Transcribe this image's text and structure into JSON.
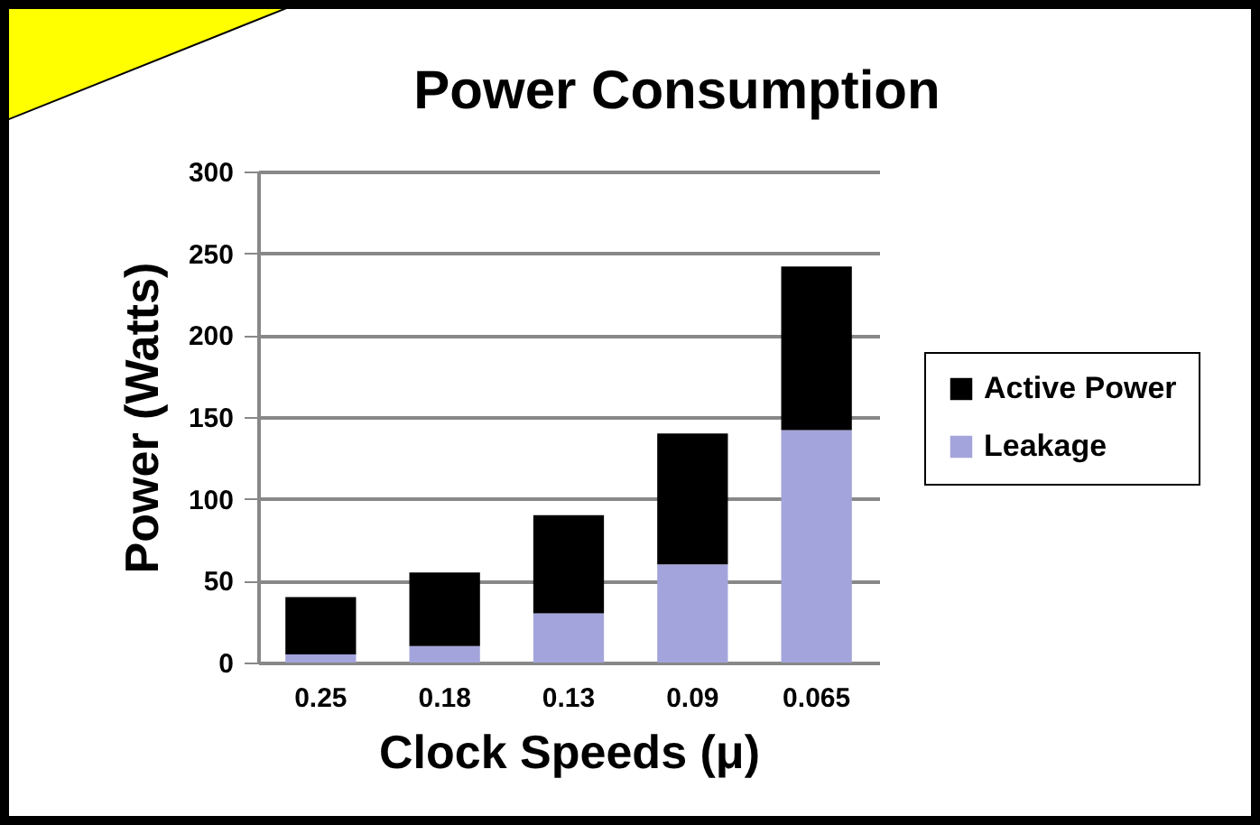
{
  "chart_data": {
    "type": "bar",
    "title": "Power Consumption",
    "xlabel": "Clock Speeds (μ)",
    "ylabel": "Power (Watts)",
    "categories": [
      "0.25",
      "0.18",
      "0.13",
      "0.09",
      "0.065"
    ],
    "series": [
      {
        "name": "Leakage",
        "color": "#a4a4dc",
        "values": [
          5,
          10,
          30,
          60,
          142
        ]
      },
      {
        "name": "Active Power",
        "color": "#000000",
        "values": [
          35,
          45,
          60,
          80,
          100
        ]
      }
    ],
    "stacked": true,
    "ylim": [
      0,
      300
    ],
    "yticks": [
      0,
      50,
      100,
      150,
      200,
      250,
      300
    ],
    "grid": "y",
    "legend": "right"
  }
}
